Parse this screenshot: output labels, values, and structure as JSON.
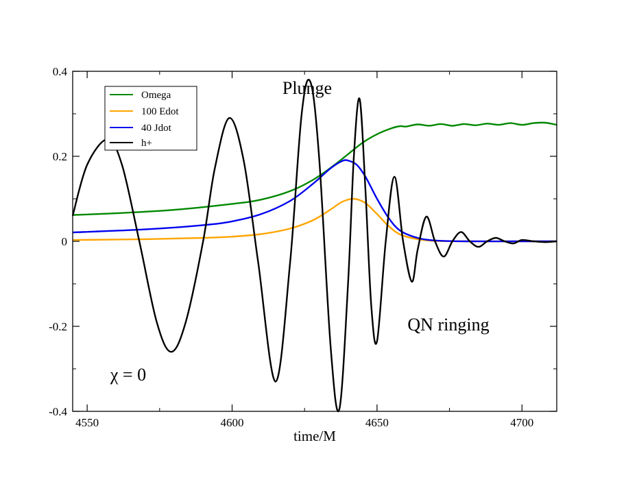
{
  "chart_data": {
    "type": "line",
    "title": "",
    "xlabel": "time/M",
    "ylabel": "",
    "xlim": [
      4545,
      4712
    ],
    "ylim": [
      -0.4,
      0.4
    ],
    "xticks": [
      4550,
      4600,
      4650,
      4700
    ],
    "yticks": [
      0.4,
      0.2,
      0,
      -0.2,
      -0.4
    ],
    "ytick_labels": [
      "0.4",
      "0.2",
      "0",
      "-0.2",
      "-0.4"
    ],
    "grid": false,
    "legend_position": "top-left",
    "annotations": [
      {
        "text": "Plunge",
        "x": 4626,
        "y": 0.4
      },
      {
        "text": "QN ringing",
        "x": 4680,
        "y": -0.19
      },
      {
        "text": "χ = 0",
        "x": 4561,
        "y": -0.31
      }
    ],
    "series": [
      {
        "name": "Omega",
        "color": "#008800",
        "x": [
          4545,
          4560,
          4580,
          4600,
          4610,
          4620,
          4628,
          4635,
          4640,
          4645,
          4650,
          4655,
          4658,
          4660,
          4664,
          4668,
          4672,
          4676,
          4680,
          4684,
          4688,
          4692,
          4696,
          4700,
          4704,
          4708,
          4712
        ],
        "y": [
          0.062,
          0.066,
          0.074,
          0.088,
          0.098,
          0.118,
          0.145,
          0.178,
          0.205,
          0.232,
          0.252,
          0.266,
          0.271,
          0.27,
          0.275,
          0.272,
          0.276,
          0.272,
          0.276,
          0.273,
          0.277,
          0.274,
          0.278,
          0.274,
          0.278,
          0.279,
          0.274
        ]
      },
      {
        "name": "100 Edot",
        "color": "#ffa500",
        "x": [
          4545,
          4570,
          4590,
          4600,
          4610,
          4620,
          4628,
          4634,
          4638,
          4642,
          4646,
          4650,
          4654,
          4658,
          4664,
          4670,
          4680,
          4700,
          4712
        ],
        "y": [
          0.003,
          0.005,
          0.008,
          0.011,
          0.017,
          0.03,
          0.05,
          0.075,
          0.093,
          0.1,
          0.09,
          0.064,
          0.036,
          0.016,
          0.005,
          0.001,
          0.0,
          0.0,
          0.0
        ]
      },
      {
        "name": "40 Jdot",
        "color": "#0000ee",
        "x": [
          4545,
          4570,
          4590,
          4600,
          4610,
          4620,
          4628,
          4634,
          4638,
          4640,
          4643,
          4646,
          4650,
          4654,
          4658,
          4664,
          4670,
          4680,
          4700,
          4712
        ],
        "y": [
          0.021,
          0.028,
          0.038,
          0.047,
          0.064,
          0.095,
          0.136,
          0.172,
          0.189,
          0.19,
          0.18,
          0.152,
          0.1,
          0.055,
          0.025,
          0.008,
          0.002,
          0.0,
          0.0,
          0.0
        ]
      },
      {
        "name": "h+",
        "color": "#000000",
        "x": [
          4545,
          4550,
          4557,
          4562,
          4568,
          4574,
          4579,
          4584,
          4590,
          4594,
          4599,
          4604,
          4609,
          4615,
          4620,
          4624,
          4627,
          4630,
          4634,
          4637,
          4640,
          4642,
          4644,
          4646,
          4648,
          4650,
          4653,
          4656,
          4659,
          4662,
          4664,
          4667,
          4670,
          4673,
          4676,
          4679,
          4682,
          4685,
          4688,
          4691,
          4694,
          4697,
          4700,
          4704,
          4708,
          4712
        ],
        "y": [
          0.06,
          0.18,
          0.24,
          0.18,
          0.0,
          -0.19,
          -0.26,
          -0.19,
          0.0,
          0.17,
          0.29,
          0.19,
          -0.05,
          -0.33,
          -0.05,
          0.3,
          0.375,
          0.2,
          -0.25,
          -0.395,
          -0.1,
          0.2,
          0.335,
          0.12,
          -0.15,
          -0.235,
          0.0,
          0.152,
          0.0,
          -0.095,
          -0.02,
          0.058,
          0.0,
          -0.036,
          0.0,
          0.022,
          0.0,
          -0.013,
          0.0,
          0.008,
          0.0,
          -0.005,
          0.003,
          0.0,
          -0.002,
          0.0
        ]
      }
    ]
  }
}
